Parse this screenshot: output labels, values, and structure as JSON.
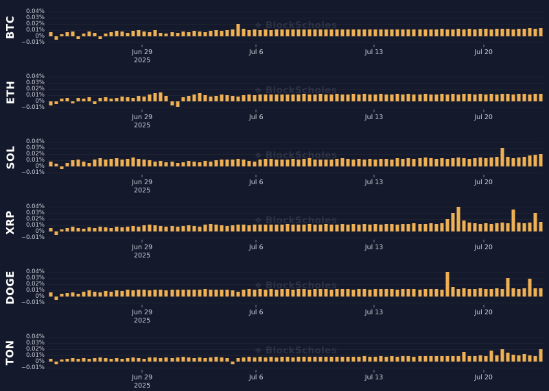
{
  "colors": {
    "background": "#141a2b",
    "bar": "#f0b054",
    "axis_text": "#ccd0da",
    "ticker_text": "#ffffff"
  },
  "watermark": {
    "text": "BlockScholes"
  },
  "chart_data": {
    "type": "bar",
    "unit": "%",
    "grid": "faint-horizontal",
    "ylim": [
      -0.013,
      0.045
    ],
    "y_ticks": [
      {
        "label": "0.04%",
        "value": 0.04
      },
      {
        "label": "0.03%",
        "value": 0.03
      },
      {
        "label": "0.02%",
        "value": 0.02
      },
      {
        "label": "0.01%",
        "value": 0.01
      },
      {
        "label": "0%",
        "value": 0
      },
      {
        "label": "−0.01%",
        "value": -0.01
      }
    ],
    "x_ticks": [
      {
        "label": "Jun 29",
        "sublabel": "2025",
        "pos": 0.19
      },
      {
        "label": "Jul 6",
        "pos": 0.42
      },
      {
        "label": "Jul 13",
        "pos": 0.658
      },
      {
        "label": "Jul 20",
        "pos": 0.879
      }
    ],
    "series": [
      {
        "name": "BTC",
        "values": [
          0.007,
          -0.005,
          0.004,
          0.007,
          0.008,
          -0.004,
          0.005,
          0.008,
          0.006,
          -0.004,
          0.005,
          0.007,
          0.009,
          0.008,
          0.006,
          0.009,
          0.01,
          0.008,
          0.007,
          0.01,
          0.006,
          0.005,
          0.007,
          0.006,
          0.008,
          0.007,
          0.009,
          0.008,
          0.007,
          0.009,
          0.01,
          0.009,
          0.01,
          0.011,
          0.02,
          0.013,
          0.01,
          0.011,
          0.01,
          0.011,
          0.01,
          0.011,
          0.012,
          0.011,
          0.012,
          0.011,
          0.012,
          0.012,
          0.011,
          0.012,
          0.012,
          0.011,
          0.012,
          0.012,
          0.012,
          0.011,
          0.012,
          0.012,
          0.012,
          0.012,
          0.012,
          0.012,
          0.012,
          0.012,
          0.012,
          0.012,
          0.012,
          0.012,
          0.012,
          0.012,
          0.012,
          0.013,
          0.012,
          0.012,
          0.013,
          0.012,
          0.013,
          0.012,
          0.013,
          0.013,
          0.012,
          0.013,
          0.013,
          0.013,
          0.012,
          0.013,
          0.013,
          0.014,
          0.013,
          0.014
        ]
      },
      {
        "name": "ETH",
        "values": [
          -0.006,
          -0.004,
          0.005,
          0.006,
          -0.003,
          0.006,
          0.005,
          0.007,
          -0.004,
          0.006,
          0.007,
          0.005,
          0.006,
          0.008,
          0.007,
          0.006,
          0.009,
          0.008,
          0.011,
          0.014,
          0.015,
          0.009,
          -0.006,
          -0.008,
          0.007,
          0.009,
          0.012,
          0.014,
          0.01,
          0.008,
          0.009,
          0.011,
          0.01,
          0.009,
          0.008,
          0.01,
          0.011,
          0.01,
          0.011,
          0.012,
          0.011,
          0.012,
          0.012,
          0.011,
          0.012,
          0.012,
          0.013,
          0.012,
          0.012,
          0.013,
          0.012,
          0.012,
          0.013,
          0.012,
          0.012,
          0.013,
          0.012,
          0.013,
          0.012,
          0.012,
          0.013,
          0.012,
          0.012,
          0.013,
          0.012,
          0.013,
          0.012,
          0.012,
          0.013,
          0.012,
          0.012,
          0.013,
          0.012,
          0.013,
          0.012,
          0.013,
          0.013,
          0.012,
          0.013,
          0.012,
          0.013,
          0.012,
          0.013,
          0.013,
          0.012,
          0.013,
          0.013,
          0.012,
          0.013,
          0.013
        ]
      },
      {
        "name": "SOL",
        "values": [
          0.008,
          0.005,
          -0.004,
          0.006,
          0.01,
          0.012,
          0.008,
          0.006,
          0.011,
          0.014,
          0.012,
          0.013,
          0.014,
          0.012,
          0.013,
          0.015,
          0.013,
          0.012,
          0.01,
          0.008,
          0.009,
          0.007,
          0.008,
          0.006,
          0.007,
          0.009,
          0.008,
          0.007,
          0.009,
          0.008,
          0.01,
          0.012,
          0.011,
          0.012,
          0.013,
          0.011,
          0.009,
          0.008,
          0.011,
          0.013,
          0.013,
          0.012,
          0.011,
          0.012,
          0.013,
          0.012,
          0.013,
          0.014,
          0.012,
          0.011,
          0.012,
          0.011,
          0.013,
          0.014,
          0.013,
          0.012,
          0.013,
          0.012,
          0.013,
          0.012,
          0.013,
          0.013,
          0.012,
          0.014,
          0.013,
          0.014,
          0.013,
          0.014,
          0.015,
          0.014,
          0.013,
          0.014,
          0.013,
          0.014,
          0.015,
          0.014,
          0.013,
          0.014,
          0.015,
          0.014,
          0.015,
          0.016,
          0.03,
          0.016,
          0.014,
          0.015,
          0.016,
          0.018,
          0.019,
          0.02
        ]
      },
      {
        "name": "XRP",
        "values": [
          0.006,
          -0.005,
          0.004,
          0.006,
          0.008,
          0.006,
          0.005,
          0.007,
          0.006,
          0.008,
          0.007,
          0.006,
          0.008,
          0.007,
          0.008,
          0.009,
          0.008,
          0.01,
          0.012,
          0.01,
          0.009,
          0.008,
          0.009,
          0.008,
          0.009,
          0.01,
          0.009,
          0.008,
          0.012,
          0.013,
          0.012,
          0.01,
          0.009,
          0.01,
          0.012,
          0.011,
          0.01,
          0.011,
          0.012,
          0.011,
          0.012,
          0.011,
          0.012,
          0.013,
          0.012,
          0.011,
          0.012,
          0.013,
          0.012,
          0.012,
          0.013,
          0.012,
          0.012,
          0.013,
          0.012,
          0.013,
          0.012,
          0.013,
          0.012,
          0.013,
          0.012,
          0.013,
          0.013,
          0.012,
          0.013,
          0.013,
          0.014,
          0.013,
          0.013,
          0.014,
          0.013,
          0.014,
          0.02,
          0.031,
          0.04,
          0.018,
          0.015,
          0.014,
          0.013,
          0.014,
          0.013,
          0.014,
          0.015,
          0.014,
          0.036,
          0.015,
          0.014,
          0.015,
          0.031,
          0.016
        ]
      },
      {
        "name": "DOGE",
        "values": [
          0.007,
          -0.005,
          0.005,
          0.006,
          0.007,
          0.005,
          0.008,
          0.01,
          0.008,
          0.007,
          0.009,
          0.008,
          0.01,
          0.009,
          0.011,
          0.01,
          0.012,
          0.011,
          0.01,
          0.012,
          0.011,
          0.01,
          0.011,
          0.012,
          0.011,
          0.012,
          0.011,
          0.012,
          0.013,
          0.012,
          0.011,
          0.012,
          0.011,
          0.01,
          0.008,
          0.012,
          0.013,
          0.012,
          0.013,
          0.012,
          0.013,
          0.012,
          0.013,
          0.013,
          0.012,
          0.013,
          0.013,
          0.012,
          0.013,
          0.013,
          0.013,
          0.012,
          0.013,
          0.013,
          0.013,
          0.012,
          0.013,
          0.013,
          0.012,
          0.013,
          0.013,
          0.013,
          0.013,
          0.012,
          0.013,
          0.013,
          0.013,
          0.012,
          0.013,
          0.013,
          0.013,
          0.012,
          0.04,
          0.016,
          0.013,
          0.014,
          0.013,
          0.013,
          0.014,
          0.013,
          0.013,
          0.014,
          0.013,
          0.031,
          0.014,
          0.013,
          0.014,
          0.029,
          0.014,
          0.014
        ]
      },
      {
        "name": "TON",
        "values": [
          0.005,
          -0.004,
          0.004,
          0.005,
          0.006,
          0.005,
          0.006,
          0.005,
          0.006,
          0.007,
          0.006,
          0.005,
          0.006,
          0.005,
          0.006,
          0.007,
          0.006,
          0.005,
          0.007,
          0.007,
          0.006,
          0.007,
          0.006,
          0.007,
          0.008,
          0.007,
          0.006,
          0.007,
          0.006,
          0.007,
          0.008,
          0.007,
          0.006,
          -0.004,
          0.006,
          0.007,
          0.008,
          0.007,
          0.008,
          0.007,
          0.008,
          0.007,
          0.008,
          0.008,
          0.007,
          0.008,
          0.008,
          0.008,
          0.008,
          0.008,
          0.008,
          0.008,
          0.008,
          0.008,
          0.008,
          0.008,
          0.008,
          0.009,
          0.008,
          0.008,
          0.009,
          0.008,
          0.009,
          0.008,
          0.009,
          0.009,
          0.008,
          0.009,
          0.009,
          0.009,
          0.009,
          0.009,
          0.009,
          0.009,
          0.009,
          0.016,
          0.009,
          0.009,
          0.01,
          0.009,
          0.018,
          0.01,
          0.02,
          0.015,
          0.012,
          0.01,
          0.013,
          0.01,
          0.009,
          0.02
        ]
      }
    ]
  }
}
